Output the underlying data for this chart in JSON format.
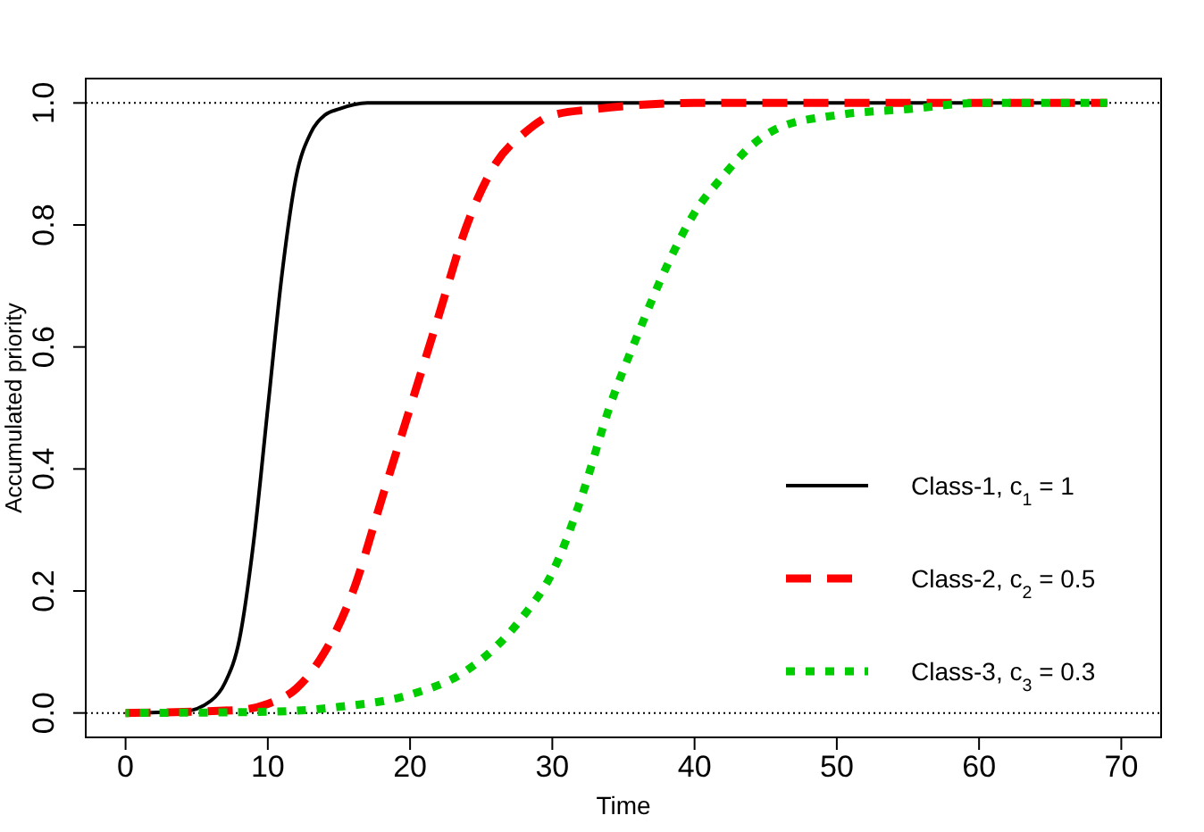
{
  "chart_data": {
    "type": "line",
    "xlabel": "Time",
    "ylabel": "Accumulated priority",
    "xlim": [
      -2.8,
      72.8
    ],
    "ylim": [
      -0.04,
      1.04
    ],
    "xticks": [
      0,
      10,
      20,
      30,
      40,
      50,
      60,
      70
    ],
    "yticks": [
      {
        "value": 0,
        "label": "0.0"
      },
      {
        "value": 0.2,
        "label": "0.2"
      },
      {
        "value": 0.4,
        "label": "0.4"
      },
      {
        "value": 0.6,
        "label": "0.6"
      },
      {
        "value": 0.8,
        "label": "0.8"
      },
      {
        "value": 1,
        "label": "1.0"
      }
    ],
    "grid": false,
    "legend": "bottom right",
    "marker": "none",
    "ref_lines": [
      {
        "axis": "y",
        "value": 0,
        "line_style": "dotted",
        "color": "#000000"
      },
      {
        "axis": "y",
        "value": 1,
        "line_style": "dotted",
        "color": "#000000"
      }
    ],
    "series": [
      {
        "name": "Class-1, c$_{1}$ = 1",
        "color": "#000000",
        "line_style": "solid",
        "x": [
          0,
          4,
          6,
          7,
          8,
          9,
          10,
          11,
          12,
          13,
          14,
          15,
          17,
          69
        ],
        "values": [
          0,
          0.002,
          0.02,
          0.05,
          0.12,
          0.28,
          0.5,
          0.72,
          0.88,
          0.95,
          0.98,
          0.99,
          1,
          1
        ]
      },
      {
        "name": "Class-2, c$_{2}$ = 0.5",
        "color": "#ff0000",
        "line_style": "dashed",
        "x": [
          0,
          8,
          10,
          12,
          14,
          16,
          18,
          20,
          22,
          24,
          26,
          28,
          30,
          33,
          40,
          69
        ],
        "values": [
          0,
          0.005,
          0.015,
          0.04,
          0.1,
          0.2,
          0.35,
          0.5,
          0.65,
          0.8,
          0.9,
          0.95,
          0.98,
          0.99,
          1,
          1
        ]
      },
      {
        "name": "Class-3, c$_{3}$ = 0.3",
        "color": "#00cd00",
        "line_style": "dotted",
        "x": [
          0,
          10,
          15,
          20,
          24,
          28,
          30,
          32,
          34,
          36,
          38,
          40,
          42,
          44,
          46,
          50,
          55,
          60,
          69
        ],
        "values": [
          0,
          0.002,
          0.01,
          0.03,
          0.07,
          0.16,
          0.23,
          0.35,
          0.5,
          0.62,
          0.73,
          0.82,
          0.88,
          0.93,
          0.96,
          0.98,
          0.99,
          1,
          1
        ]
      }
    ]
  }
}
